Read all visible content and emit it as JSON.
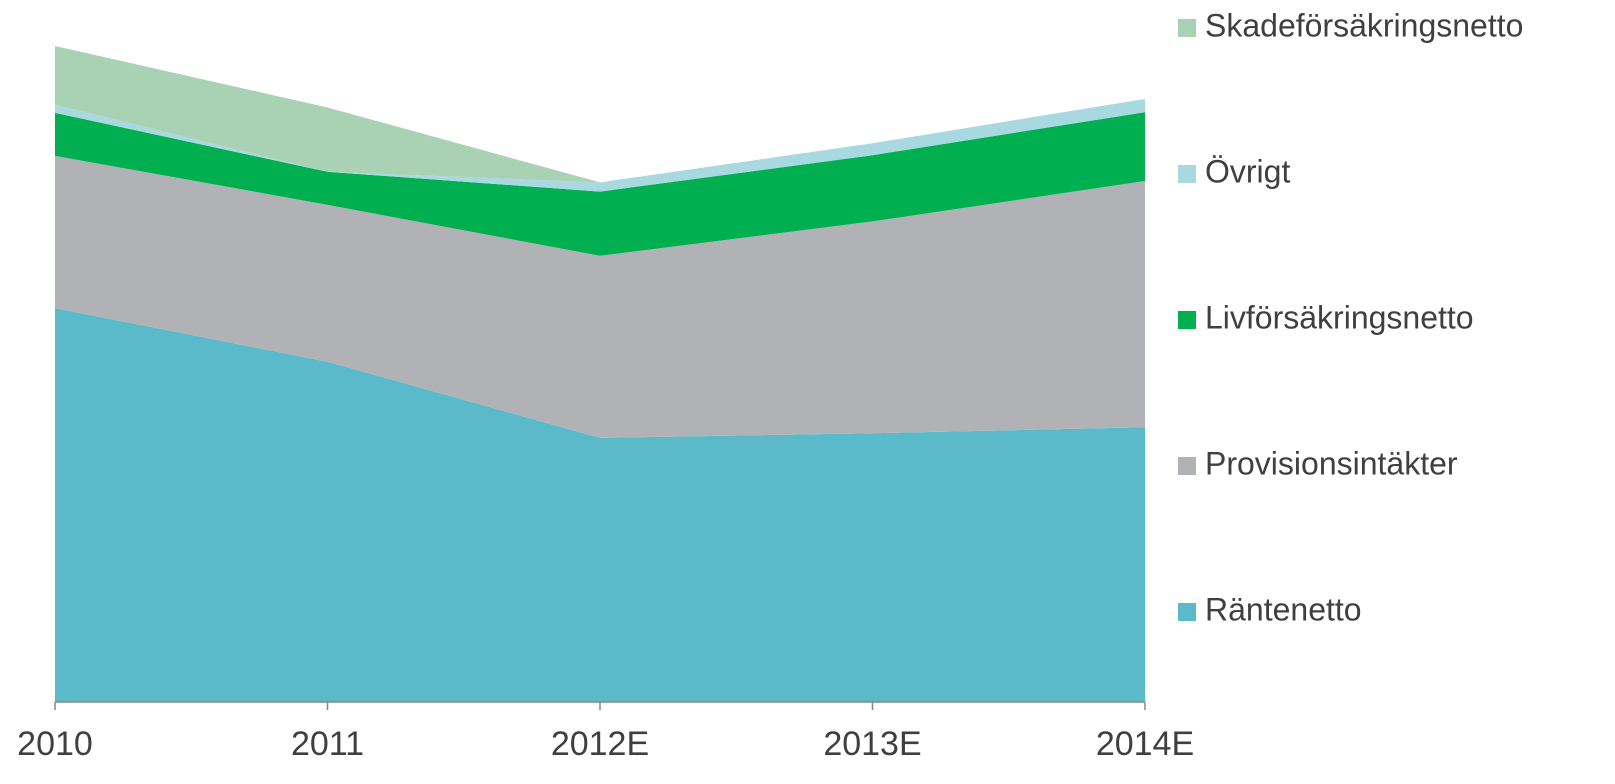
{
  "chart_data": {
    "type": "stacked-area",
    "categories": [
      "2010",
      "2011",
      "2012E",
      "2013E",
      "2014E"
    ],
    "ylim": [
      0,
      100
    ],
    "series": [
      {
        "name": "Räntenetto",
        "color": "#5bbac9",
        "values": [
          59.5,
          51.4,
          39.9,
          40.6,
          41.5
        ]
      },
      {
        "name": "Provisionsintäkter",
        "color": "#b1b2b6",
        "values": [
          23.0,
          23.7,
          27.5,
          32.0,
          37.2
        ]
      },
      {
        "name": "Livförsäkringsnetto",
        "color": "#00b050",
        "values": [
          6.5,
          5.0,
          9.7,
          10.0,
          10.4
        ]
      },
      {
        "name": "Övrigt",
        "color": "#a8d8e0",
        "values": [
          1.2,
          0,
          1.4,
          1.8,
          2.0
        ]
      },
      {
        "name": "Skadeförsäkringsnetto",
        "color": "#a9d1b3",
        "values": [
          8.9,
          9.7,
          0,
          0,
          0
        ]
      }
    ]
  }
}
